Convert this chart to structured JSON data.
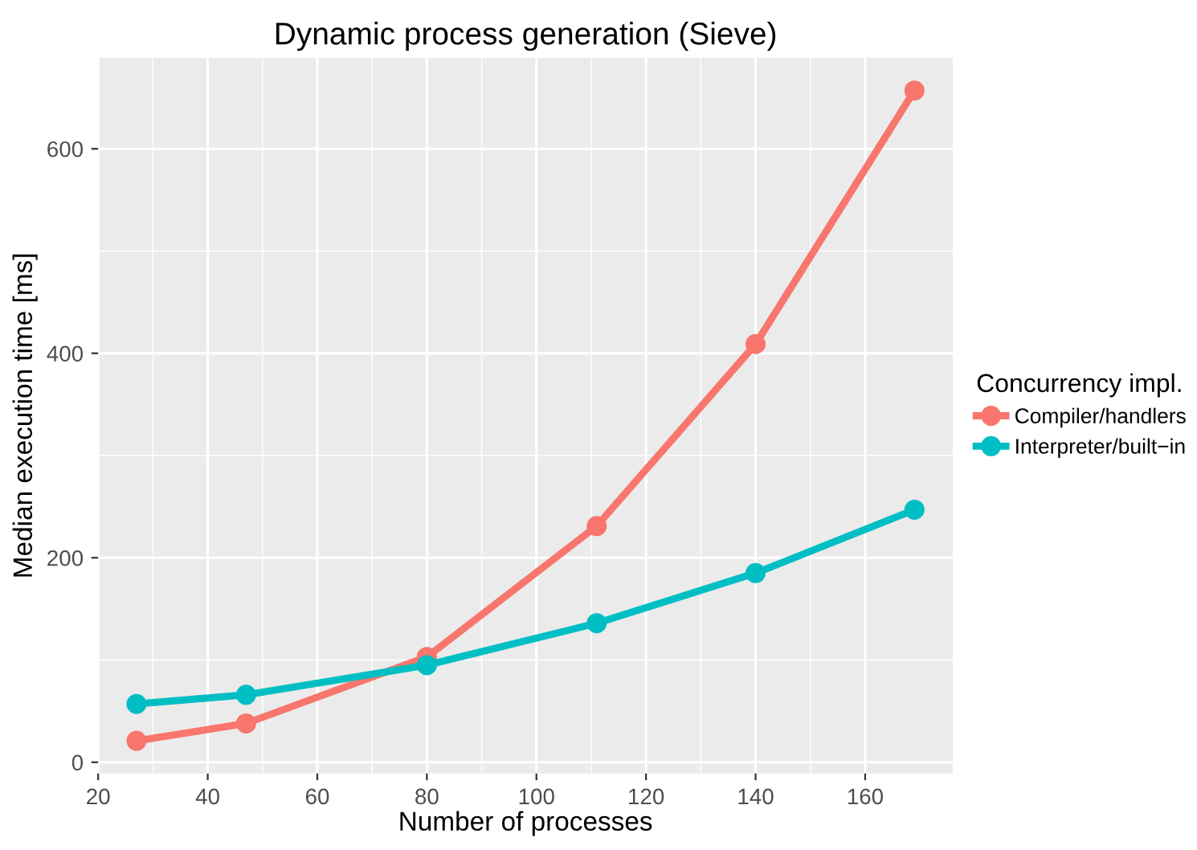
{
  "chart_data": {
    "type": "line",
    "title": "Dynamic process generation (Sieve)",
    "xlabel": "Number of processes",
    "ylabel": "Median execution time [ms]",
    "legend_title": "Concurrency impl.",
    "x": [
      27,
      47,
      80,
      111,
      140,
      169
    ],
    "series": [
      {
        "name": "Compiler/handlers",
        "color": "#f8766d",
        "values": [
          21,
          38,
          103,
          231,
          409,
          657
        ]
      },
      {
        "name": "Interpreter/built−in",
        "color": "#00bfc4",
        "values": [
          57,
          66,
          95,
          136,
          185,
          247
        ]
      }
    ],
    "xlim": [
      20,
      176
    ],
    "ylim": [
      -11,
      689
    ],
    "xticks": [
      20,
      40,
      60,
      80,
      100,
      120,
      140,
      160
    ],
    "yticks": [
      0,
      200,
      400,
      600
    ],
    "grid": true,
    "legend": "right",
    "marker": "circle",
    "line_style": "solid"
  }
}
